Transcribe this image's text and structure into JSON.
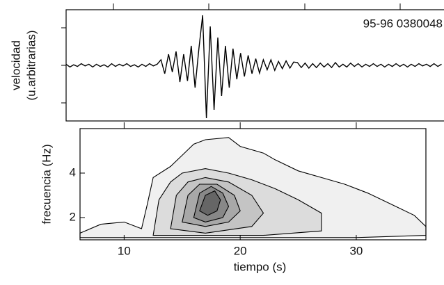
{
  "chart_data": [
    {
      "type": "line",
      "ylabel_lines": [
        "velocidad",
        "(u.arbitrarias)"
      ],
      "annotation": "95-96 0380048",
      "xlim": [
        0,
        40
      ],
      "ylim": [
        -1,
        1
      ],
      "x": [
        0,
        0.4,
        0.8,
        1.2,
        1.6,
        2,
        2.4,
        2.8,
        3.2,
        3.6,
        4,
        4.4,
        4.8,
        5.2,
        5.6,
        6,
        6.4,
        6.8,
        7.2,
        7.6,
        8,
        8.4,
        8.8,
        9.2,
        9.6,
        10,
        10.4,
        10.8,
        11.2,
        11.6,
        12,
        12.4,
        12.8,
        13.2,
        13.6,
        14,
        14.4,
        14.8,
        15.2,
        15.6,
        16,
        16.4,
        16.8,
        17.2,
        17.6,
        18,
        18.4,
        18.8,
        19.2,
        19.6,
        20,
        20.4,
        20.8,
        21.2,
        21.6,
        22,
        22.4,
        22.8,
        23.2,
        23.6,
        24,
        24.4,
        24.8,
        25.2,
        25.6,
        26,
        26.4,
        26.8,
        27.2,
        27.6,
        28,
        28.4,
        28.8,
        29.2,
        29.6,
        30,
        30.4,
        30.8,
        31.2,
        31.6,
        32,
        32.4,
        32.8,
        33.2,
        33.6,
        34,
        34.4,
        34.8,
        35.2,
        35.6,
        36,
        36.4,
        36.8,
        37.2,
        37.6,
        38,
        38.4,
        38.8,
        39.2,
        39.6
      ],
      "series": [
        {
          "color": "#000000",
          "values": [
            0.02,
            -0.03,
            0.01,
            -0.02,
            0.03,
            -0.01,
            0.02,
            -0.03,
            0.02,
            -0.02,
            0.01,
            -0.03,
            0.03,
            -0.02,
            0.02,
            -0.01,
            0.03,
            -0.02,
            0.01,
            -0.03,
            0.02,
            -0.02,
            0.03,
            -0.01,
            0.02,
            0.1,
            -0.15,
            0.2,
            -0.12,
            0.25,
            -0.3,
            0.2,
            -0.28,
            0.35,
            -0.4,
            0.3,
            0.9,
            -0.95,
            0.7,
            -0.8,
            0.5,
            -0.55,
            0.35,
            -0.4,
            0.3,
            -0.25,
            0.22,
            -0.2,
            0.18,
            -0.15,
            0.12,
            -0.14,
            0.1,
            -0.08,
            0.1,
            -0.09,
            0.07,
            -0.06,
            0.08,
            -0.05,
            0.06,
            0.05,
            -0.04,
            0.04,
            -0.05,
            0.03,
            -0.04,
            0.04,
            -0.03,
            0.03,
            -0.04,
            0.05,
            -0.03,
            0.02,
            -0.03,
            0.04,
            -0.02,
            0.03,
            -0.03,
            0.02,
            -0.02,
            0.03,
            -0.02,
            0.02,
            -0.03,
            0.02,
            -0.02,
            0.03,
            -0.02,
            0.02,
            -0.03,
            0.02,
            -0.02,
            0.03,
            -0.01,
            0.02,
            -0.02,
            0.03,
            -0.02,
            0.02
          ]
        }
      ]
    },
    {
      "type": "contour",
      "xlabel": "tiempo (s)",
      "ylabel": "frecuencia (Hz)",
      "xlim": [
        6.2,
        36
      ],
      "ylim": [
        1,
        6
      ],
      "xticks": [
        10,
        20,
        30
      ],
      "yticks": [
        2,
        4
      ],
      "series": [
        {
          "color": "#f0f0f0",
          "x": [
            6.2,
            6.2,
            8,
            10,
            11.5,
            12,
            12.5,
            14,
            15,
            16,
            17,
            19,
            20,
            22,
            23,
            25,
            27,
            29,
            31,
            33,
            35,
            36,
            36,
            30,
            20,
            12
          ],
          "values": [
            1.1,
            1.3,
            1.7,
            1.8,
            1.5,
            2.6,
            3.8,
            4.3,
            4.8,
            5.3,
            5.5,
            5.6,
            5.2,
            4.9,
            4.6,
            4.1,
            3.8,
            3.5,
            3.1,
            2.6,
            2.1,
            1.6,
            1.2,
            1.1,
            1.1,
            1.1
          ]
        },
        {
          "color": "#dcdcdc",
          "x": [
            12.5,
            13,
            14,
            15,
            17,
            19,
            21,
            23,
            25,
            27,
            27,
            22
          ],
          "values": [
            1.2,
            2.8,
            3.6,
            4.0,
            4.2,
            4.0,
            3.7,
            3.3,
            2.8,
            2.2,
            1.4,
            1.2
          ]
        },
        {
          "color": "#c4c4c4",
          "x": [
            14,
            14.5,
            15.5,
            17,
            19,
            21,
            22,
            21,
            17
          ],
          "values": [
            1.5,
            3.0,
            3.6,
            3.8,
            3.6,
            3.0,
            2.2,
            1.6,
            1.3
          ]
        },
        {
          "color": "#a8a8a8",
          "x": [
            15,
            15.5,
            16.5,
            18,
            19.5,
            20,
            19,
            17
          ],
          "values": [
            1.8,
            3.0,
            3.5,
            3.5,
            3.0,
            2.3,
            1.8,
            1.6
          ]
        },
        {
          "color": "#888888",
          "x": [
            16,
            16.5,
            17.5,
            18.5,
            19,
            18.5,
            17
          ],
          "values": [
            2.0,
            3.1,
            3.4,
            3.1,
            2.5,
            2.0,
            1.8
          ]
        },
        {
          "color": "#666666",
          "x": [
            16.5,
            17,
            17.8,
            18.3,
            18,
            17.2
          ],
          "values": [
            2.3,
            3.0,
            3.2,
            2.8,
            2.3,
            2.1
          ]
        }
      ]
    }
  ]
}
